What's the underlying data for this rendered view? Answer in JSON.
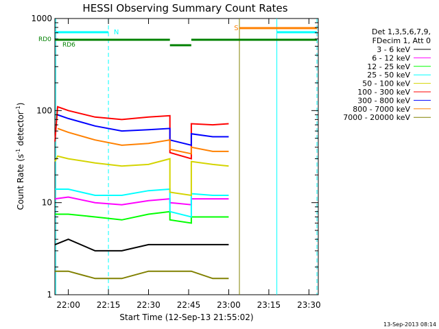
{
  "chart_data": {
    "type": "line",
    "title": "HESSI Observing Summary Count Rates",
    "xlabel": "Start Time (12-Sep-13 21:55:02)",
    "ylabel_main": "Count Rate (s",
    "ylabel_sup1": "-1",
    "ylabel_mid": " detector",
    "ylabel_sup2": "-1",
    "ylabel_end": ")",
    "ylog": true,
    "xlim_minutes": [
      -5.0333,
      93.5
    ],
    "ylim": [
      1,
      1000
    ],
    "x_ticks": [
      {
        "label": "22:00",
        "minutes": 0
      },
      {
        "label": "22:15",
        "minutes": 15
      },
      {
        "label": "22:30",
        "minutes": 30
      },
      {
        "label": "22:45",
        "minutes": 45
      },
      {
        "label": "23:00",
        "minutes": 60
      },
      {
        "label": "23:15",
        "minutes": 75
      },
      {
        "label": "23:30",
        "minutes": 90
      }
    ],
    "y_ticks": [
      {
        "label": "1",
        "value": 1
      },
      {
        "label": "10",
        "value": 10
      },
      {
        "label": "100",
        "value": 100
      },
      {
        "label": "1000",
        "value": 1000
      }
    ],
    "legend": {
      "placement": "right",
      "header": [
        "Det 1,3,5,6,7,9,",
        "FDecim 1, Att 0"
      ]
    },
    "series": [
      {
        "name": "3 - 6 keV",
        "color": "#000000",
        "x": [
          -5,
          0,
          10,
          20,
          30,
          38,
          46,
          54,
          60
        ],
        "y": [
          3.5,
          4,
          3,
          3,
          3.5,
          3.5,
          3.5,
          3.5,
          3.5
        ]
      },
      {
        "name": "6 - 12 keV",
        "color": "#ff00ff",
        "x": [
          -5,
          0,
          10,
          20,
          30,
          38,
          38,
          46,
          46,
          54,
          60
        ],
        "y": [
          11,
          11.5,
          10,
          9.5,
          10.5,
          11,
          10,
          9.5,
          11,
          11,
          11
        ]
      },
      {
        "name": "12 - 25 keV",
        "color": "#00ff00",
        "x": [
          -5,
          0,
          10,
          20,
          30,
          38,
          38,
          46,
          46,
          54,
          60
        ],
        "y": [
          7.5,
          7.5,
          7,
          6.5,
          7.5,
          8,
          6.5,
          6,
          7,
          7,
          7
        ]
      },
      {
        "name": "25 - 50 keV",
        "color": "#00ffff",
        "x": [
          -5,
          0,
          10,
          20,
          30,
          38,
          38,
          46,
          46,
          54,
          60
        ],
        "y": [
          14,
          14,
          12,
          12,
          13.5,
          14,
          8,
          7,
          12.5,
          12,
          12
        ]
      },
      {
        "name": "50 - 100 keV",
        "color": "#d4d400",
        "x": [
          -5,
          -4,
          0,
          10,
          20,
          30,
          38,
          38,
          46,
          46,
          54,
          60
        ],
        "y": [
          28,
          32,
          30,
          27,
          25,
          26,
          30,
          13,
          12,
          28,
          26,
          25
        ]
      },
      {
        "name": "100 - 300 keV",
        "color": "#ff0000",
        "x": [
          -5,
          -4,
          0,
          10,
          20,
          30,
          38,
          38,
          46,
          46,
          54,
          60
        ],
        "y": [
          46,
          110,
          100,
          85,
          80,
          85,
          88,
          35,
          30,
          72,
          70,
          72
        ]
      },
      {
        "name": "300 - 800 keV",
        "color": "#0000ff",
        "x": [
          -4,
          0,
          10,
          20,
          30,
          38,
          38,
          46,
          46,
          54,
          60
        ],
        "y": [
          90,
          82,
          68,
          60,
          62,
          64,
          48,
          42,
          56,
          52,
          52
        ]
      },
      {
        "name": "800 - 7000 keV",
        "color": "#ff8000",
        "x": [
          -4,
          0,
          10,
          20,
          30,
          38,
          38,
          46,
          46,
          54,
          60
        ],
        "y": [
          64,
          58,
          48,
          42,
          44,
          48,
          38,
          34,
          40,
          36,
          36
        ]
      },
      {
        "name": "7000 - 20000 keV",
        "color": "#808000",
        "x": [
          -5,
          0,
          10,
          20,
          30,
          38,
          46,
          54,
          60
        ],
        "y": [
          1.8,
          1.8,
          1.5,
          1.5,
          1.8,
          1.8,
          1.8,
          1.5,
          1.5
        ]
      }
    ],
    "flag_bars": [
      {
        "name": "RD0",
        "color": "#008000",
        "segments": [
          [
            -5,
            38
          ],
          [
            46,
            93
          ]
        ]
      },
      {
        "name": "RD6",
        "color": "#008000",
        "segments": [
          [
            38,
            46
          ]
        ]
      }
    ],
    "annotations": [
      {
        "text": "N",
        "color": "#00ffff",
        "x_minutes": 17,
        "segment": [
          -5,
          15
        ]
      },
      {
        "text": "S",
        "color": "#ff8000",
        "x_minutes": 62,
        "segment": [
          64,
          93
        ]
      },
      {
        "text": "",
        "color": "#00ffff",
        "segment": [
          78,
          93
        ]
      }
    ],
    "vlines": [
      {
        "color": "#00ffff",
        "style": "solid",
        "minutes": -4.7
      },
      {
        "color": "#00ffff",
        "style": "dashed",
        "minutes": 15
      },
      {
        "color": "#808000",
        "style": "solid",
        "minutes": 64
      },
      {
        "color": "#00ffff",
        "style": "solid",
        "minutes": 78
      },
      {
        "color": "#00ffff",
        "style": "dashed",
        "minutes": 93
      }
    ],
    "footer": "13-Sep-2013 08:14"
  }
}
